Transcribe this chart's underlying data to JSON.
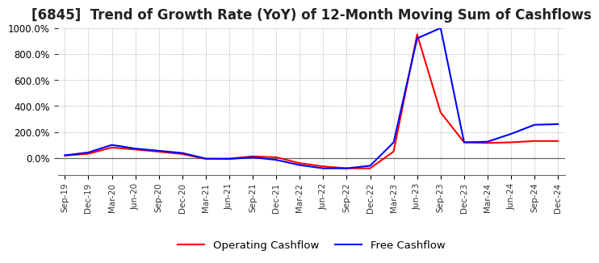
{
  "title": "[6845]  Trend of Growth Rate (YoY) of 12-Month Moving Sum of Cashflows",
  "title_fontsize": 12,
  "background_color": "#ffffff",
  "plot_bg_color": "#ffffff",
  "grid_color": "#999999",
  "x_labels": [
    "Sep-19",
    "Dec-19",
    "Mar-20",
    "Jun-20",
    "Sep-20",
    "Dec-20",
    "Mar-21",
    "Jun-21",
    "Sep-21",
    "Dec-21",
    "Mar-22",
    "Jun-22",
    "Sep-22",
    "Dec-22",
    "Mar-23",
    "Jun-23",
    "Sep-23",
    "Dec-23",
    "Mar-24",
    "Jun-24",
    "Sep-24",
    "Dec-24"
  ],
  "operating_cashflow": [
    18,
    32,
    80,
    65,
    48,
    30,
    -8,
    -5,
    12,
    5,
    -40,
    -65,
    -80,
    -80,
    50,
    950,
    350,
    120,
    115,
    120,
    130,
    130
  ],
  "free_cashflow": [
    20,
    42,
    100,
    72,
    55,
    38,
    -5,
    -8,
    5,
    -15,
    -55,
    -80,
    -80,
    -60,
    120,
    920,
    1000,
    120,
    125,
    185,
    255,
    260
  ],
  "ylim_min": -130,
  "ylim_max": 1000,
  "yticks": [
    0,
    200,
    400,
    600,
    800,
    1000
  ],
  "operating_color": "#ff0000",
  "free_color": "#0000ff",
  "line_width": 1.5,
  "legend_operating": "Operating Cashflow",
  "legend_free": "Free Cashflow"
}
